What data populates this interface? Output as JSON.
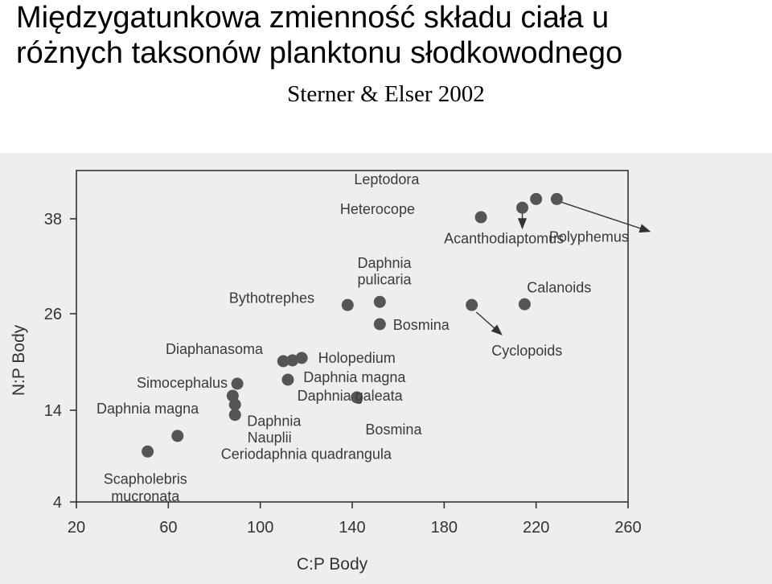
{
  "title_line1": "Międzygatunkowa zmienność składu ciała u",
  "title_line2": "różnych taksonów planktonu słodkowodnego",
  "subtitle": "Sterner & Elser 2002",
  "chart_data": {
    "type": "scatter",
    "xlabel": "C:P Body",
    "ylabel": "N:P Body",
    "xlim": [
      20,
      260
    ],
    "ylim": [
      4,
      42
    ],
    "xticks": [
      "20",
      "60",
      "100",
      "140",
      "180",
      "220",
      "260"
    ],
    "yticks": [
      "4",
      "14",
      "26",
      "38"
    ],
    "point_color": "#555555",
    "points": [
      {
        "x": 51,
        "y": 9.5
      },
      {
        "x": 64,
        "y": 11.2
      },
      {
        "x": 89,
        "y": 13.5
      },
      {
        "x": 89,
        "y": 14.7
      },
      {
        "x": 88,
        "y": 15.8
      },
      {
        "x": 90,
        "y": 17.3
      },
      {
        "x": 110,
        "y": 20.1
      },
      {
        "x": 114,
        "y": 20.2
      },
      {
        "x": 118,
        "y": 20.5
      },
      {
        "x": 112,
        "y": 17.8
      },
      {
        "x": 142,
        "y": 15.6
      },
      {
        "x": 152,
        "y": 24.7
      },
      {
        "x": 152,
        "y": 27.5
      },
      {
        "x": 138,
        "y": 27.1
      },
      {
        "x": 192,
        "y": 27.1
      },
      {
        "x": 196,
        "y": 38.2
      },
      {
        "x": 214,
        "y": 39.4
      },
      {
        "x": 220,
        "y": 40.5
      },
      {
        "x": 229,
        "y": 40.5
      },
      {
        "x": 215,
        "y": 27.2
      }
    ],
    "annotations": [
      {
        "text": "Leptodora",
        "x": 155,
        "y": 43
      },
      {
        "text": "Heterocope",
        "x": 151,
        "y": 39.2
      },
      {
        "text": "Acanthodiaptomus",
        "x": 206,
        "y": 35.5
      },
      {
        "text": "Polyphemus",
        "x": 243,
        "y": 35.7
      },
      {
        "text": "Daphnia",
        "x": 154,
        "y": 32.4
      },
      {
        "text": "pulicaria",
        "x": 154,
        "y": 30.3
      },
      {
        "text": "Calanoids",
        "x": 230,
        "y": 29.3
      },
      {
        "text": "Bythotrephes",
        "x": 105,
        "y": 28
      },
      {
        "text": "Bosmina",
        "x": 170,
        "y": 24.6
      },
      {
        "text": "Cyclopoids",
        "x": 216,
        "y": 21.4
      },
      {
        "text": "Diaphanasoma",
        "x": 80,
        "y": 21.6
      },
      {
        "text": "Holopedium",
        "x": 142,
        "y": 20.5
      },
      {
        "text": "Simocephalus",
        "x": 66,
        "y": 17.4
      },
      {
        "text": "Daphnia magna",
        "x": 141,
        "y": 18.1
      },
      {
        "text": "Daphnia galeata",
        "x": 139,
        "y": 15.8
      },
      {
        "text": "Daphnia magna",
        "x": 51,
        "y": 14.2
      },
      {
        "text": "Daphnia",
        "x": 106,
        "y": 12.8
      },
      {
        "text": "Nauplii",
        "x": 104,
        "y": 11
      },
      {
        "text": "Bosmina",
        "x": 158,
        "y": 11.9
      },
      {
        "text": "Ceriodaphnia quadrangula",
        "x": 120,
        "y": 9.2
      },
      {
        "text": "Scapholebris",
        "x": 50,
        "y": 6.5
      },
      {
        "text": "mucronata",
        "x": 50,
        "y": 4.6
      }
    ]
  }
}
